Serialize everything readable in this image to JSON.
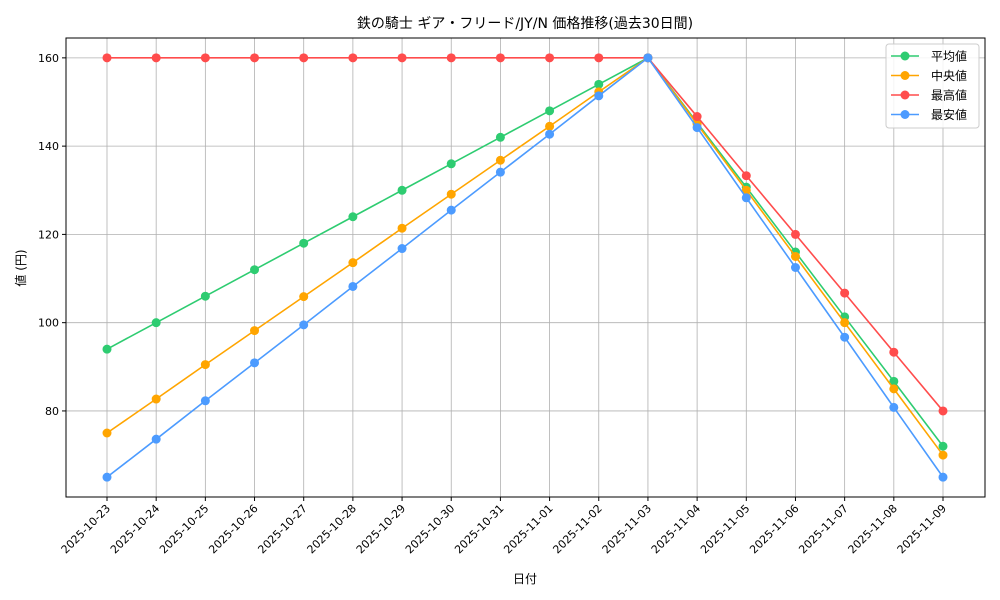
{
  "chart_data": {
    "type": "line",
    "title": "鉄の騎士 ギア・フリード/JY/N 価格推移(過去30日間)",
    "xlabel": "日付",
    "ylabel": "値 (円)",
    "categories": [
      "2025-10-23",
      "2025-10-24",
      "2025-10-25",
      "2025-10-26",
      "2025-10-27",
      "2025-10-28",
      "2025-10-29",
      "2025-10-30",
      "2025-10-31",
      "2025-11-01",
      "2025-11-02",
      "2025-11-03",
      "2025-11-04",
      "2025-11-05",
      "2025-11-06",
      "2025-11-07",
      "2025-11-08",
      "2025-11-09"
    ],
    "ylim": [
      60.5,
      164.5
    ],
    "yticks": [
      80,
      100,
      120,
      140,
      160
    ],
    "grid": true,
    "legend_position": "top-right",
    "series": [
      {
        "name": "平均値",
        "color": "#2ecc71",
        "values": [
          94,
          100,
          106,
          112,
          118,
          124,
          130,
          136,
          142,
          148,
          154,
          160,
          145.3,
          130.7,
          116,
          101.3,
          86.7,
          72
        ]
      },
      {
        "name": "中央値",
        "color": "#ffa500",
        "values": [
          75,
          82.7,
          90.5,
          98.2,
          105.9,
          113.6,
          121.4,
          129.1,
          136.8,
          144.5,
          152.3,
          160,
          145,
          130,
          115,
          100,
          85,
          70
        ]
      },
      {
        "name": "最高値",
        "color": "#ff4c4c",
        "values": [
          160,
          160,
          160,
          160,
          160,
          160,
          160,
          160,
          160,
          160,
          160,
          160,
          146.7,
          133.3,
          120,
          106.7,
          93.3,
          80
        ]
      },
      {
        "name": "最安値",
        "color": "#4c9bff",
        "values": [
          65,
          73.6,
          82.3,
          90.9,
          99.5,
          108.2,
          116.8,
          125.5,
          134.1,
          142.7,
          151.4,
          160,
          144.2,
          128.3,
          112.5,
          96.7,
          80.8,
          65
        ]
      }
    ]
  }
}
